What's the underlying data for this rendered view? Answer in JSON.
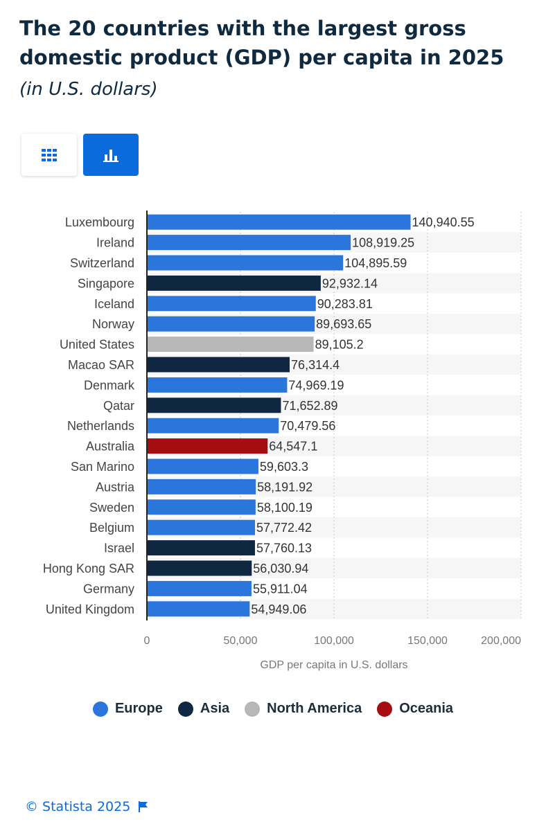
{
  "header": {
    "title": "The 20 countries with the largest gross domestic product (GDP) per capita in 2025",
    "subtitle": "(in U.S. dollars)"
  },
  "view_toggle": {
    "table_icon": "grid-icon",
    "chart_icon": "bar-chart-icon",
    "active": "chart",
    "active_color": "#0a6bdc"
  },
  "footer": {
    "copyright": "© Statista 2025",
    "flag_icon": "flag-icon"
  },
  "chart_data": {
    "type": "bar",
    "orientation": "horizontal",
    "title": "The 20 countries with the largest gross domestic product (GDP) per capita in 2025",
    "subtitle": "(in U.S. dollars)",
    "xlabel": "GDP per capita in U.S. dollars",
    "ylabel": "",
    "xlim": [
      0,
      200000
    ],
    "x_ticks": [
      "0",
      "50,000",
      "100,000",
      "150,000",
      "200,000"
    ],
    "x_tick_values": [
      0,
      50000,
      100000,
      150000,
      200000
    ],
    "grid": true,
    "legend_position": "bottom",
    "legend": [
      {
        "name": "Europe",
        "color": "#2a76dd"
      },
      {
        "name": "Asia",
        "color": "#0f2740"
      },
      {
        "name": "North America",
        "color": "#b7b7b7"
      },
      {
        "name": "Oceania",
        "color": "#a50d10"
      }
    ],
    "categories": [
      "Luxembourg",
      "Ireland",
      "Switzerland",
      "Singapore",
      "Iceland",
      "Norway",
      "United States",
      "Macao SAR",
      "Denmark",
      "Qatar",
      "Netherlands",
      "Australia",
      "San Marino",
      "Austria",
      "Sweden",
      "Belgium",
      "Israel",
      "Hong Kong SAR",
      "Germany",
      "United Kingdom"
    ],
    "values": [
      140940.55,
      108919.25,
      104895.59,
      92932.14,
      90283.81,
      89693.65,
      89105.2,
      76314.4,
      74969.19,
      71652.89,
      70479.56,
      64547.1,
      59603.3,
      58191.92,
      58100.19,
      57772.42,
      57760.13,
      56030.94,
      55911.04,
      54949.06
    ],
    "value_labels": [
      "140,940.55",
      "108,919.25",
      "104,895.59",
      "92,932.14",
      "90,283.81",
      "89,693.65",
      "89,105.2",
      "76,314.4",
      "74,969.19",
      "71,652.89",
      "70,479.56",
      "64,547.1",
      "59,603.3",
      "58,191.92",
      "58,100.19",
      "57,772.42",
      "57,760.13",
      "56,030.94",
      "55,911.04",
      "54,949.06"
    ],
    "regions": [
      "Europe",
      "Europe",
      "Europe",
      "Asia",
      "Europe",
      "Europe",
      "North America",
      "Asia",
      "Europe",
      "Asia",
      "Europe",
      "Oceania",
      "Europe",
      "Europe",
      "Europe",
      "Europe",
      "Asia",
      "Asia",
      "Europe",
      "Europe"
    ]
  }
}
